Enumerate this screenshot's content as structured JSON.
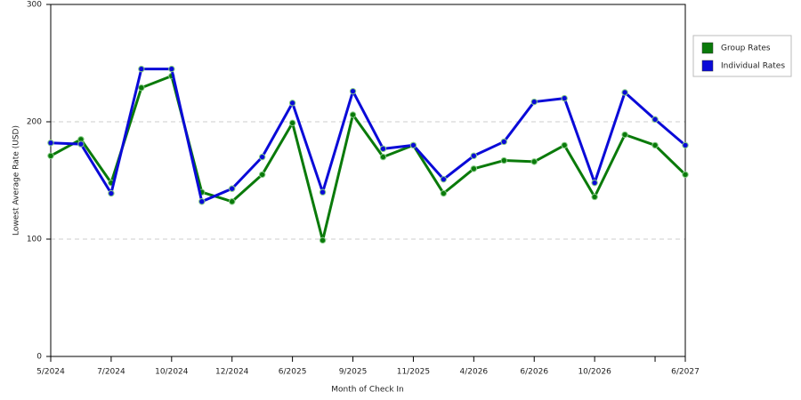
{
  "chart_data": {
    "type": "line",
    "x_label": "Month of Check In",
    "y_label": "Lowest Average Rate (USD)",
    "categories": [
      "5/2024",
      null,
      "7/2024",
      null,
      "10/2024",
      null,
      "12/2024",
      null,
      "6/2025",
      null,
      "9/2025",
      null,
      "11/2025",
      null,
      "4/2026",
      null,
      "6/2026",
      null,
      "10/2026",
      null,
      null,
      "6/2027"
    ],
    "series": [
      {
        "name": "Group Rates",
        "color": "#0a7a0a",
        "values": [
          171,
          185,
          148,
          229,
          239,
          140,
          132,
          155,
          199,
          99,
          206,
          170,
          180,
          139,
          160,
          167,
          166,
          180,
          136,
          189,
          180,
          155
        ]
      },
      {
        "name": "Individual Rates",
        "color": "#0a0ad8",
        "values": [
          182,
          181,
          139,
          245,
          245,
          132,
          143,
          170,
          216,
          140,
          226,
          177,
          180,
          151,
          171,
          183,
          217,
          220,
          148,
          225,
          202,
          180
        ]
      }
    ],
    "ylim": [
      0,
      300
    ],
    "yticks": [
      0,
      100,
      200,
      300
    ],
    "grid": true
  }
}
